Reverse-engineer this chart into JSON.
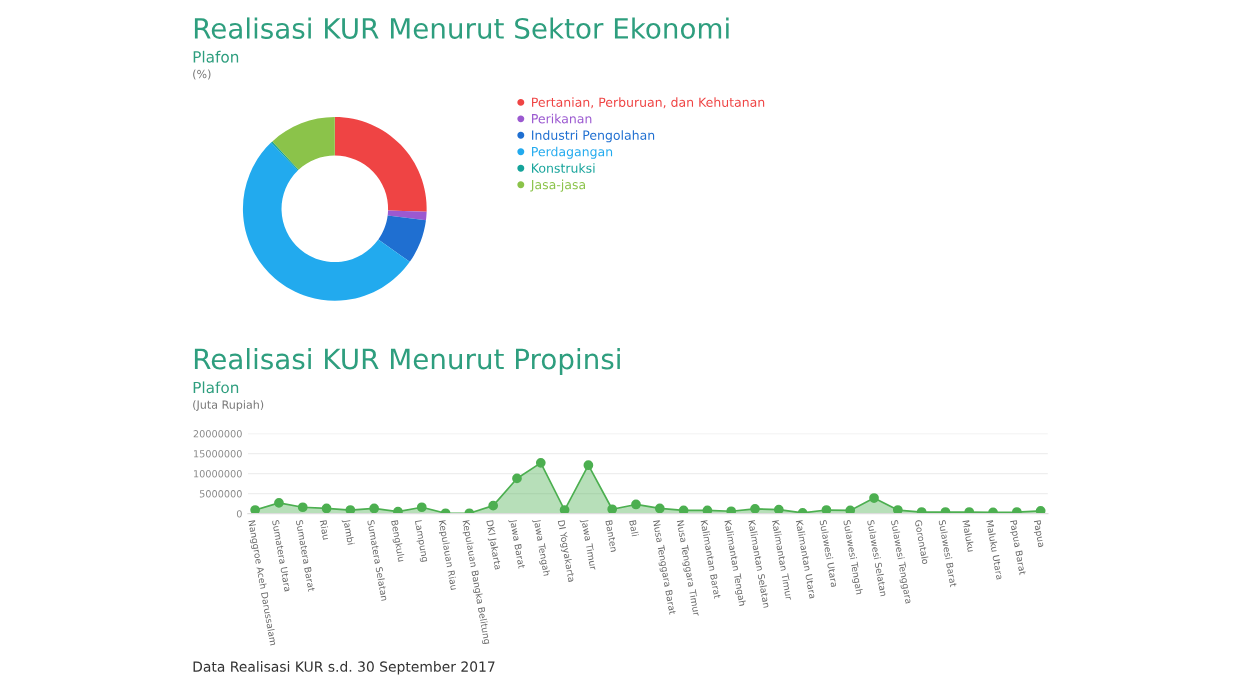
{
  "chart_data": [
    {
      "type": "donut",
      "title": "Realisasi KUR Menurut Sektor Ekonomi",
      "subtitle": "Plafon",
      "ylabel": "(%)",
      "categories": [
        "Pertanian, Perburuan, dan Kehutanan",
        "Perikanan",
        "Industri Pengolahan",
        "Perdagangan",
        "Konstruksi",
        "Jasa-jasa"
      ],
      "values": [
        25.5,
        1.5,
        7.8,
        53.0,
        0.3,
        11.9
      ],
      "colors": [
        "#ef4444",
        "#9b59d0",
        "#1f6fd1",
        "#22aaee",
        "#14a39a",
        "#8bc34a"
      ],
      "legend": "right"
    },
    {
      "type": "area",
      "title": "Realisasi KUR Menurut Propinsi",
      "subtitle": "Plafon",
      "ylabel": "(Juta Rupiah)",
      "categories": [
        "Nanggroe Aceh Darussalam",
        "Sumatera Utara",
        "Sumatera Barat",
        "Riau",
        "Jambi",
        "Sumatera Selatan",
        "Bengkulu",
        "Lampung",
        "Kepulauan Riau",
        "Kepulauan Bangka Belitung",
        "DKI Jakarta",
        "Jawa Barat",
        "Jawa Tengah",
        "DI Yogyakarta",
        "Jawa Timur",
        "Banten",
        "Bali",
        "Nusa Tenggara Barat",
        "Nusa Tenggara Timur",
        "Kalimantan Barat",
        "Kalimantan Tengah",
        "Kalimantan Selatan",
        "Kalimantan Timur",
        "Kalimantan Utara",
        "Sulawesi Utara",
        "Sulawesi Tengah",
        "Sulawesi Selatan",
        "Sulawesi Tenggara",
        "Gorontalo",
        "Sulawesi Barat",
        "Maluku",
        "Maluku Utara",
        "Papua Barat",
        "Papua"
      ],
      "series": [
        {
          "color": "#4caf50",
          "values": [
            900000,
            2700000,
            1600000,
            1300000,
            900000,
            1300000,
            500000,
            1600000,
            100000,
            100000,
            2000000,
            8800000,
            12700000,
            900000,
            12100000,
            1100000,
            2300000,
            1300000,
            800000,
            800000,
            600000,
            1200000,
            1000000,
            200000,
            900000,
            800000,
            3900000,
            900000,
            400000,
            400000,
            400000,
            300000,
            400000,
            700000
          ]
        }
      ],
      "ylim": [
        0,
        20000000
      ],
      "yticks": [
        0,
        5000000,
        10000000,
        15000000,
        20000000
      ],
      "grid": "y",
      "marker": "circle",
      "annotations": [
        "Data Realisasi KUR s.d. 30 September 2017"
      ]
    }
  ]
}
